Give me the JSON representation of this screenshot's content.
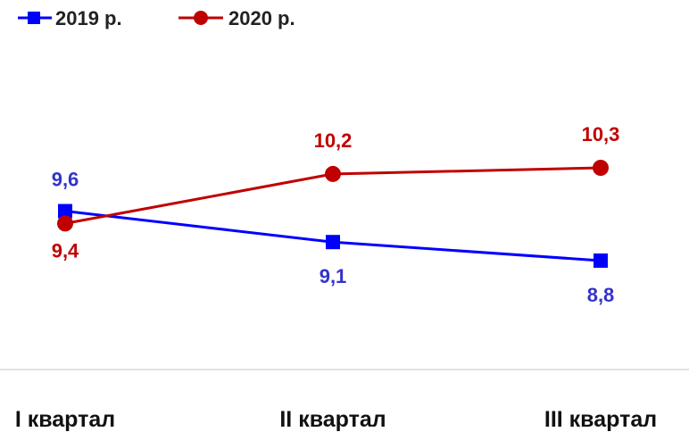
{
  "chart_data": {
    "type": "line",
    "categories": [
      "I квартал",
      "II квартал",
      "III квартал"
    ],
    "series": [
      {
        "name": "2019 р.",
        "values": [
          9.6,
          9.1,
          8.8
        ],
        "labels": [
          "9,6",
          "9,1",
          "8,8"
        ],
        "color": "#0000FF",
        "marker": "square",
        "label_color": "#3333CC"
      },
      {
        "name": "2020 р.",
        "values": [
          9.4,
          10.2,
          10.3
        ],
        "labels": [
          "9,4",
          "10,2",
          "10,3"
        ],
        "color": "#C00000",
        "marker": "circle",
        "label_color": "#C00000"
      }
    ],
    "title": "",
    "xlabel": "",
    "ylabel": "",
    "legend_position": "top-left",
    "grid": false
  }
}
